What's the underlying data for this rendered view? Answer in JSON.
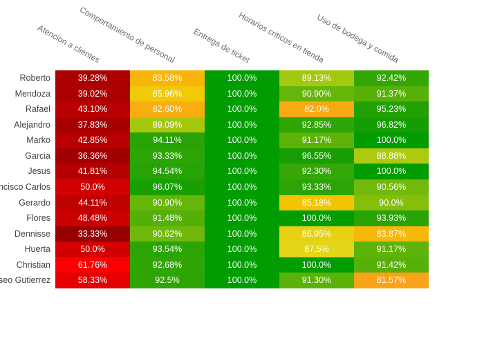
{
  "chart_data": {
    "type": "heatmap",
    "title": "",
    "legend": "none",
    "grid": false,
    "cell_text_color": "#ffffff",
    "row_label_color": "#444444",
    "col_header_color": "#6b6b6b",
    "x_axis": {
      "side": "top",
      "tick_angle_deg": 29,
      "labels": [
        "Atencion a clientes",
        "Comportamiento de personal",
        "Entrega de ticket",
        "Horarios criticos en tienda",
        "Uso de bodega y comida"
      ]
    },
    "y_axis": {
      "labels": [
        "Roberto",
        "Mendoza",
        "Rafael",
        "Alejandro",
        "Marko",
        "Garcia",
        "Jesus",
        "ncisco Carlos",
        "Gerardo",
        "Flores",
        "Dennisse",
        "Huerta",
        "Christian",
        "seo Gutierrez"
      ]
    },
    "colorscale": {
      "description": "red (low) -> yellow -> green (high) percentage scale",
      "low": "#970000",
      "mid": "#E3D619",
      "high": "#009C00"
    },
    "values": [
      [
        39.28,
        83.58,
        100.0,
        89.13,
        92.42
      ],
      [
        39.02,
        85.96,
        100.0,
        90.9,
        91.37
      ],
      [
        43.1,
        82.6,
        100.0,
        82.0,
        95.23
      ],
      [
        37.83,
        89.09,
        100.0,
        92.85,
        96.82
      ],
      [
        42.85,
        94.11,
        100.0,
        91.17,
        100.0
      ],
      [
        36.36,
        93.33,
        100.0,
        96.55,
        88.88
      ],
      [
        41.81,
        94.54,
        100.0,
        92.3,
        100.0
      ],
      [
        50.0,
        96.07,
        100.0,
        93.33,
        90.56
      ],
      [
        44.11,
        90.9,
        100.0,
        85.18,
        90.0
      ],
      [
        48.48,
        91.48,
        100.0,
        100.0,
        93.93
      ],
      [
        33.33,
        90.62,
        100.0,
        86.95,
        83.87
      ],
      [
        50.0,
        93.54,
        100.0,
        87.5,
        91.17
      ],
      [
        61.76,
        92.68,
        100.0,
        100.0,
        91.42
      ],
      [
        58.33,
        92.5,
        100.0,
        91.3,
        81.57
      ]
    ],
    "display": [
      [
        "39.28%",
        "83.58%",
        "100.0%",
        "89.13%",
        "92.42%"
      ],
      [
        "39.02%",
        "85.96%",
        "100.0%",
        "90.90%",
        "91.37%"
      ],
      [
        "43.10%",
        "82.60%",
        "100.0%",
        "82.0%",
        "95.23%"
      ],
      [
        "37.83%",
        "89.09%",
        "100.0%",
        "92.85%",
        "96.82%"
      ],
      [
        "42.85%",
        "94.11%",
        "100.0%",
        "91.17%",
        "100.0%"
      ],
      [
        "36.36%",
        "93.33%",
        "100.0%",
        "96.55%",
        "88.88%"
      ],
      [
        "41.81%",
        "94.54%",
        "100.0%",
        "92.30%",
        "100.0%"
      ],
      [
        "50.0%",
        "96.07%",
        "100.0%",
        "93.33%",
        "90.56%"
      ],
      [
        "44.11%",
        "90.90%",
        "100.0%",
        "85.18%",
        "90.0%"
      ],
      [
        "48.48%",
        "91.48%",
        "100.0%",
        "100.0%",
        "93.93%"
      ],
      [
        "33.33%",
        "90.62%",
        "100.0%",
        "86.95%",
        "83.87%"
      ],
      [
        "50.0%",
        "93.54%",
        "100.0%",
        "87.5%",
        "91.17%"
      ],
      [
        "61.76%",
        "92.68%",
        "100.0%",
        "100.0%",
        "91.42%"
      ],
      [
        "58.33%",
        "92.5%",
        "100.0%",
        "91.30%",
        "81.57%"
      ]
    ],
    "colors": [
      [
        "#AC0000",
        "#F8B50A",
        "#009C00",
        "#A4C80F",
        "#33A606"
      ],
      [
        "#AB0000",
        "#F0C907",
        "#009C00",
        "#66B60A",
        "#58B108"
      ],
      [
        "#B90000",
        "#F9AD10",
        "#009C00",
        "#FAA914",
        "#21A104"
      ],
      [
        "#A70000",
        "#A5C80F",
        "#009C00",
        "#30A506",
        "#169D03"
      ],
      [
        "#B90000",
        "#28A305",
        "#009C00",
        "#5EB309",
        "#009C00"
      ],
      [
        "#A20000",
        "#2DA405",
        "#009C00",
        "#189E03",
        "#ADCA11"
      ],
      [
        "#B50000",
        "#27A305",
        "#009C00",
        "#35A706",
        "#009C00"
      ],
      [
        "#D20000",
        "#1A9F03",
        "#009C00",
        "#2DA405",
        "#72B90B"
      ],
      [
        "#BD0000",
        "#66B60A",
        "#009C00",
        "#F5C400",
        "#85BF0C"
      ],
      [
        "#CC0000",
        "#52B008",
        "#009C00",
        "#009C00",
        "#29A305"
      ],
      [
        "#970000",
        "#70B90B",
        "#009C00",
        "#E8D113",
        "#F7B809"
      ],
      [
        "#D20000",
        "#2BA405",
        "#009C00",
        "#E3D619",
        "#5EB309"
      ],
      [
        "#FB0000",
        "#31A506",
        "#009C00",
        "#009C00",
        "#57B008"
      ],
      [
        "#E40000",
        "#2EA505",
        "#009C00",
        "#5AB209",
        "#FBA318"
      ]
    ]
  }
}
